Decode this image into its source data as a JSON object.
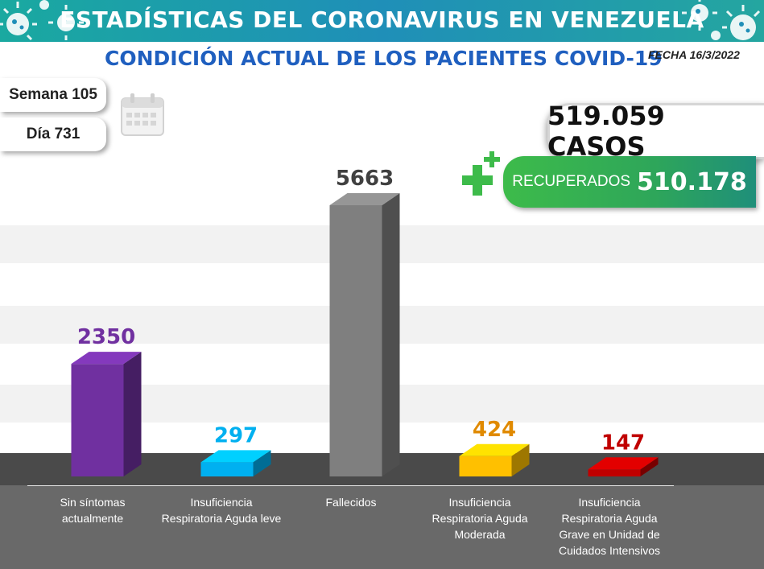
{
  "banner_title": "ESTADÍSTICAS DEL CORONAVIRUS EN VENEZUELA",
  "subtitle": "CONDICIÓN ACTUAL DE LOS PACIENTES COVID-19",
  "fecha": "FECHA 16/3/2022",
  "semana": "Semana 105",
  "dia": "Día 731",
  "casos": "519.059 CASOS",
  "recuperados_label": "RECUPERADOS",
  "recuperados_value": "510.178",
  "colors": {
    "banner": "#1f8fb8",
    "subtitle": "#1f5fbf",
    "recuperados": "#2ea65a"
  },
  "chart_data": {
    "type": "bar",
    "title": "CONDICIÓN ACTUAL DE LOS PACIENTES COVID-19",
    "categories": [
      "Sin síntomas actualmente",
      "Insuficiencia Respiratoria Aguda leve",
      "Fallecidos",
      "Insuficiencia Respiratoria Aguda Moderada",
      "Insuficiencia Respiratoria Aguda Grave en Unidad de Cuidados Intensivos"
    ],
    "values": [
      2350,
      297,
      5663,
      424,
      147
    ],
    "value_labels": [
      "2350",
      "297",
      "5663",
      "424",
      "147"
    ],
    "colors": [
      "#7030a0",
      "#00b0f0",
      "#7f7f7f",
      "#ffc000",
      "#c00000"
    ],
    "label_colors": [
      "#7030a0",
      "#00b0f0",
      "#404040",
      "#e08a00",
      "#c00000"
    ],
    "xlabel": "",
    "ylabel": "",
    "ylim": [
      0,
      5663
    ],
    "grid": true
  }
}
